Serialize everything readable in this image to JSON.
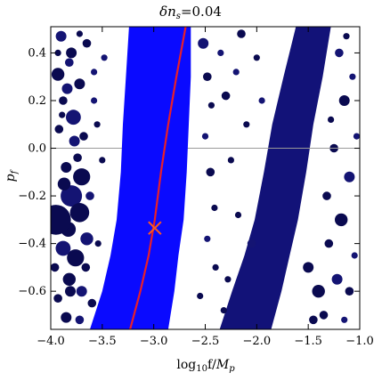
{
  "chart_data": {
    "type": "scatter",
    "title": "δn_s=0.04",
    "title_main": "δn",
    "title_sub": "s",
    "title_rest": "=0.04",
    "xlabel": "log₁₀f/M_p",
    "xlabel_main": "log",
    "xlabel_sub1": "10",
    "xlabel_mid": "f/",
    "xlabel_M": "M",
    "xlabel_sub2": "p",
    "ylabel": "p_f",
    "ylabel_main": "p",
    "ylabel_sub": "f",
    "xlim": [
      -4.0,
      -1.0
    ],
    "ylim": [
      -0.76,
      0.51
    ],
    "xticks": [
      -4.0,
      -3.5,
      -3.0,
      -2.5,
      -2.0,
      -1.5,
      -1.0
    ],
    "xtick_labels": [
      "−4.0",
      "−3.5",
      "−3.0",
      "−2.5",
      "−2.0",
      "−1.5",
      "−1.0"
    ],
    "yticks": [
      -0.6,
      -0.4,
      -0.2,
      0.0,
      0.2,
      0.4
    ],
    "ytick_labels": [
      "−0.6",
      "−0.4",
      "−0.2",
      "0.0",
      "0.2",
      "0.4"
    ],
    "zero_line": 0.0,
    "colors": {
      "allowed_band": "#0a0aff",
      "central_curve": "#e8202a",
      "marker": "#ff5a1e",
      "scatter_dark": "#0a0a50",
      "scatter_mid": "#141473",
      "scatter_right_band": "#121278",
      "zero_line": "#999999"
    },
    "allowed_band": {
      "center_line": [
        {
          "x": -2.97,
          "y": 0.51
        },
        {
          "x": -3.0,
          "y": 0.3
        },
        {
          "x": -3.02,
          "y": 0.1
        },
        {
          "x": -3.04,
          "y": -0.1
        },
        {
          "x": -3.06,
          "y": -0.3
        },
        {
          "x": -3.1,
          "y": -0.45
        },
        {
          "x": -3.16,
          "y": -0.6
        },
        {
          "x": -3.24,
          "y": -0.76
        }
      ],
      "left_edge": [
        {
          "x": -3.24,
          "y": 0.51
        },
        {
          "x": -3.27,
          "y": 0.3
        },
        {
          "x": -3.3,
          "y": 0.1
        },
        {
          "x": -3.32,
          "y": -0.1
        },
        {
          "x": -3.36,
          "y": -0.3
        },
        {
          "x": -3.42,
          "y": -0.45
        },
        {
          "x": -3.5,
          "y": -0.6
        },
        {
          "x": -3.62,
          "y": -0.76
        }
      ],
      "right_edge": [
        {
          "x": -2.64,
          "y": 0.51
        },
        {
          "x": -2.64,
          "y": 0.3
        },
        {
          "x": -2.66,
          "y": 0.1
        },
        {
          "x": -2.68,
          "y": -0.1
        },
        {
          "x": -2.71,
          "y": -0.3
        },
        {
          "x": -2.76,
          "y": -0.45
        },
        {
          "x": -2.8,
          "y": -0.6
        },
        {
          "x": -2.86,
          "y": -0.76
        }
      ]
    },
    "central_curve": [
      {
        "x": -2.69,
        "y": 0.51
      },
      {
        "x": -2.78,
        "y": 0.3
      },
      {
        "x": -2.86,
        "y": 0.1
      },
      {
        "x": -2.93,
        "y": -0.1
      },
      {
        "x": -2.99,
        "y": -0.3
      },
      {
        "x": -3.05,
        "y": -0.45
      },
      {
        "x": -3.13,
        "y": -0.6
      },
      {
        "x": -3.23,
        "y": -0.76
      }
    ],
    "best_fit_marker": {
      "x": -2.99,
      "y": -0.335,
      "shape": "x"
    },
    "right_excluded_band": {
      "left_edge": [
        {
          "x": -1.62,
          "y": 0.51
        },
        {
          "x": -1.74,
          "y": 0.3
        },
        {
          "x": -1.85,
          "y": 0.1
        },
        {
          "x": -1.93,
          "y": -0.1
        },
        {
          "x": -2.02,
          "y": -0.3
        },
        {
          "x": -2.12,
          "y": -0.45
        },
        {
          "x": -2.24,
          "y": -0.6
        },
        {
          "x": -2.36,
          "y": -0.76
        }
      ],
      "right_edge": [
        {
          "x": -1.28,
          "y": 0.51
        },
        {
          "x": -1.36,
          "y": 0.3
        },
        {
          "x": -1.45,
          "y": 0.1
        },
        {
          "x": -1.52,
          "y": -0.1
        },
        {
          "x": -1.6,
          "y": -0.3
        },
        {
          "x": -1.68,
          "y": -0.45
        },
        {
          "x": -1.76,
          "y": -0.6
        },
        {
          "x": -1.86,
          "y": -0.76
        }
      ]
    },
    "scatter_points": [
      {
        "x": -3.9,
        "y": 0.47,
        "s": 0.5
      },
      {
        "x": -3.8,
        "y": 0.4,
        "s": 0.5
      },
      {
        "x": -3.93,
        "y": 0.31,
        "s": 0.6
      },
      {
        "x": -3.82,
        "y": 0.36,
        "s": 0.4
      },
      {
        "x": -3.72,
        "y": 0.27,
        "s": 0.5
      },
      {
        "x": -3.88,
        "y": 0.2,
        "s": 0.4
      },
      {
        "x": -3.78,
        "y": 0.13,
        "s": 0.7
      },
      {
        "x": -3.92,
        "y": 0.08,
        "s": 0.4
      },
      {
        "x": -3.65,
        "y": 0.44,
        "s": 0.4
      },
      {
        "x": -3.58,
        "y": 0.32,
        "s": 0.3
      },
      {
        "x": -3.85,
        "y": -0.08,
        "s": 0.5
      },
      {
        "x": -3.7,
        "y": -0.12,
        "s": 0.8
      },
      {
        "x": -3.8,
        "y": -0.2,
        "s": 1.0
      },
      {
        "x": -3.72,
        "y": -0.27,
        "s": 0.9
      },
      {
        "x": -3.83,
        "y": -0.34,
        "s": 0.7
      },
      {
        "x": -3.65,
        "y": -0.38,
        "s": 0.6
      },
      {
        "x": -3.76,
        "y": -0.46,
        "s": 0.8
      },
      {
        "x": -3.82,
        "y": -0.55,
        "s": 0.6
      },
      {
        "x": -3.7,
        "y": -0.6,
        "s": 0.5
      },
      {
        "x": -3.93,
        "y": -0.63,
        "s": 0.4
      },
      {
        "x": -3.85,
        "y": -0.71,
        "s": 0.5
      },
      {
        "x": -3.72,
        "y": -0.72,
        "s": 0.4
      },
      {
        "x": -3.95,
        "y": -0.3,
        "s": 1.4
      },
      {
        "x": -3.68,
        "y": 0.05,
        "s": 0.4
      },
      {
        "x": -3.62,
        "y": -0.2,
        "s": 0.4
      },
      {
        "x": -3.55,
        "y": 0.1,
        "s": 0.3
      },
      {
        "x": -3.5,
        "y": -0.05,
        "s": 0.3
      },
      {
        "x": -3.48,
        "y": 0.38,
        "s": 0.3
      },
      {
        "x": -3.72,
        "y": 0.48,
        "s": 0.3
      },
      {
        "x": -3.96,
        "y": -0.5,
        "s": 0.4
      },
      {
        "x": -3.88,
        "y": -0.42,
        "s": 0.7
      },
      {
        "x": -3.66,
        "y": -0.5,
        "s": 0.4
      },
      {
        "x": -3.6,
        "y": -0.65,
        "s": 0.4
      },
      {
        "x": -3.77,
        "y": 0.03,
        "s": 0.5
      },
      {
        "x": -3.87,
        "y": -0.15,
        "s": 0.6
      },
      {
        "x": -3.93,
        "y": 0.4,
        "s": 0.3
      },
      {
        "x": -3.84,
        "y": 0.25,
        "s": 0.5
      },
      {
        "x": -3.74,
        "y": -0.04,
        "s": 0.4
      },
      {
        "x": -3.54,
        "y": -0.4,
        "s": 0.3
      },
      {
        "x": -3.58,
        "y": 0.2,
        "s": 0.3
      },
      {
        "x": -3.81,
        "y": -0.6,
        "s": 0.5
      },
      {
        "x": -3.89,
        "y": 0.14,
        "s": 0.3
      },
      {
        "x": -2.52,
        "y": 0.44,
        "s": 0.5
      },
      {
        "x": -2.48,
        "y": 0.3,
        "s": 0.4
      },
      {
        "x": -2.44,
        "y": 0.18,
        "s": 0.3
      },
      {
        "x": -2.5,
        "y": 0.05,
        "s": 0.3
      },
      {
        "x": -2.45,
        "y": -0.1,
        "s": 0.4
      },
      {
        "x": -2.41,
        "y": -0.25,
        "s": 0.3
      },
      {
        "x": -2.48,
        "y": -0.38,
        "s": 0.3
      },
      {
        "x": -2.4,
        "y": -0.5,
        "s": 0.3
      },
      {
        "x": -2.55,
        "y": -0.62,
        "s": 0.3
      },
      {
        "x": -2.35,
        "y": 0.4,
        "s": 0.3
      },
      {
        "x": -2.3,
        "y": 0.22,
        "s": 0.4
      },
      {
        "x": -2.25,
        "y": -0.05,
        "s": 0.3
      },
      {
        "x": -2.2,
        "y": 0.32,
        "s": 0.3
      },
      {
        "x": -2.15,
        "y": 0.48,
        "s": 0.4
      },
      {
        "x": -2.1,
        "y": 0.1,
        "s": 0.3
      },
      {
        "x": -2.05,
        "y": -0.4,
        "s": 0.4
      },
      {
        "x": -2.18,
        "y": -0.28,
        "s": 0.3
      },
      {
        "x": -2.0,
        "y": 0.38,
        "s": 0.3
      },
      {
        "x": -1.95,
        "y": 0.2,
        "s": 0.3
      },
      {
        "x": -2.28,
        "y": -0.55,
        "s": 0.3
      },
      {
        "x": -2.32,
        "y": -0.68,
        "s": 0.3
      },
      {
        "x": -1.2,
        "y": 0.4,
        "s": 0.4
      },
      {
        "x": -1.15,
        "y": 0.2,
        "s": 0.5
      },
      {
        "x": -1.25,
        "y": 0.0,
        "s": 0.4
      },
      {
        "x": -1.1,
        "y": -0.12,
        "s": 0.5
      },
      {
        "x": -1.18,
        "y": -0.3,
        "s": 0.6
      },
      {
        "x": -1.3,
        "y": -0.4,
        "s": 0.4
      },
      {
        "x": -1.22,
        "y": -0.55,
        "s": 0.5
      },
      {
        "x": -1.1,
        "y": -0.6,
        "s": 0.4
      },
      {
        "x": -1.35,
        "y": -0.7,
        "s": 0.4
      },
      {
        "x": -1.05,
        "y": -0.45,
        "s": 0.3
      },
      {
        "x": -1.4,
        "y": -0.6,
        "s": 0.6
      },
      {
        "x": -1.5,
        "y": -0.5,
        "s": 0.5
      },
      {
        "x": -1.07,
        "y": 0.3,
        "s": 0.3
      },
      {
        "x": -1.13,
        "y": 0.47,
        "s": 0.3
      },
      {
        "x": -1.28,
        "y": 0.12,
        "s": 0.3
      },
      {
        "x": -1.03,
        "y": 0.05,
        "s": 0.3
      },
      {
        "x": -1.32,
        "y": -0.2,
        "s": 0.4
      },
      {
        "x": -1.45,
        "y": -0.72,
        "s": 0.4
      },
      {
        "x": -1.15,
        "y": -0.72,
        "s": 0.3
      }
    ]
  }
}
